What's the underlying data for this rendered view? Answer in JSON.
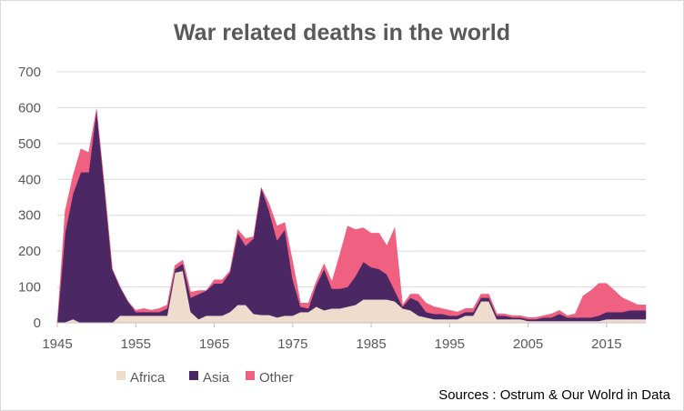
{
  "chart_data": {
    "type": "area",
    "stacked": true,
    "title": "War related deaths in the world",
    "xlabel": "",
    "ylabel": "",
    "xlim": [
      1945,
      2020
    ],
    "ylim": [
      0,
      700
    ],
    "yticks": [
      0,
      100,
      200,
      300,
      400,
      500,
      600,
      700
    ],
    "xticks": [
      1945,
      1955,
      1965,
      1975,
      1985,
      1995,
      2005,
      2015
    ],
    "grid": true,
    "legend_position": "bottom-left",
    "source": "Sources : Ostrum & Our Wolrd in Data",
    "x": [
      1945,
      1946,
      1947,
      1948,
      1949,
      1950,
      1951,
      1952,
      1953,
      1954,
      1955,
      1956,
      1957,
      1958,
      1959,
      1960,
      1961,
      1962,
      1963,
      1964,
      1965,
      1966,
      1967,
      1968,
      1969,
      1970,
      1971,
      1972,
      1973,
      1974,
      1975,
      1976,
      1977,
      1978,
      1979,
      1980,
      1981,
      1982,
      1983,
      1984,
      1985,
      1986,
      1987,
      1988,
      1989,
      1990,
      1991,
      1992,
      1993,
      1994,
      1995,
      1996,
      1997,
      1998,
      1999,
      2000,
      2001,
      2002,
      2003,
      2004,
      2005,
      2006,
      2007,
      2008,
      2009,
      2010,
      2011,
      2012,
      2013,
      2014,
      2015,
      2016,
      2017,
      2018,
      2019,
      2020
    ],
    "series": [
      {
        "name": "Africa",
        "color": "#f0dccd",
        "values": [
          0,
          2,
          10,
          0,
          0,
          0,
          0,
          0,
          20,
          20,
          20,
          20,
          20,
          20,
          20,
          140,
          145,
          30,
          10,
          20,
          20,
          20,
          30,
          50,
          50,
          25,
          22,
          22,
          15,
          20,
          20,
          30,
          30,
          45,
          35,
          40,
          40,
          45,
          50,
          65,
          65,
          65,
          65,
          60,
          40,
          35,
          20,
          15,
          10,
          10,
          10,
          10,
          20,
          20,
          60,
          60,
          10,
          10,
          10,
          10,
          5,
          5,
          5,
          5,
          5,
          5,
          5,
          5,
          5,
          5,
          10,
          10,
          10,
          10,
          10,
          10
        ]
      },
      {
        "name": "Asia",
        "color": "#4b2764",
        "values": [
          0,
          250,
          350,
          420,
          420,
          595,
          380,
          150,
          80,
          40,
          10,
          10,
          10,
          10,
          20,
          10,
          20,
          40,
          70,
          70,
          90,
          90,
          110,
          200,
          165,
          210,
          355,
          290,
          215,
          240,
          100,
          15,
          10,
          60,
          115,
          55,
          55,
          55,
          80,
          105,
          90,
          85,
          70,
          30,
          5,
          35,
          40,
          15,
          15,
          15,
          10,
          10,
          10,
          10,
          10,
          10,
          10,
          10,
          5,
          5,
          5,
          5,
          10,
          10,
          20,
          10,
          10,
          10,
          10,
          15,
          20,
          20,
          20,
          25,
          25,
          25
        ]
      },
      {
        "name": "Other",
        "color": "#f06080",
        "values": [
          0,
          60,
          50,
          65,
          55,
          0,
          0,
          0,
          0,
          0,
          5,
          10,
          5,
          10,
          10,
          10,
          10,
          15,
          10,
          0,
          10,
          10,
          5,
          10,
          20,
          5,
          0,
          20,
          40,
          20,
          50,
          10,
          15,
          10,
          15,
          20,
          95,
          170,
          130,
          95,
          95,
          100,
          80,
          175,
          5,
          10,
          20,
          25,
          20,
          15,
          15,
          10,
          10,
          10,
          10,
          10,
          5,
          5,
          5,
          5,
          5,
          5,
          5,
          10,
          10,
          5,
          10,
          60,
          75,
          90,
          80,
          60,
          40,
          25,
          15,
          15
        ]
      }
    ]
  }
}
